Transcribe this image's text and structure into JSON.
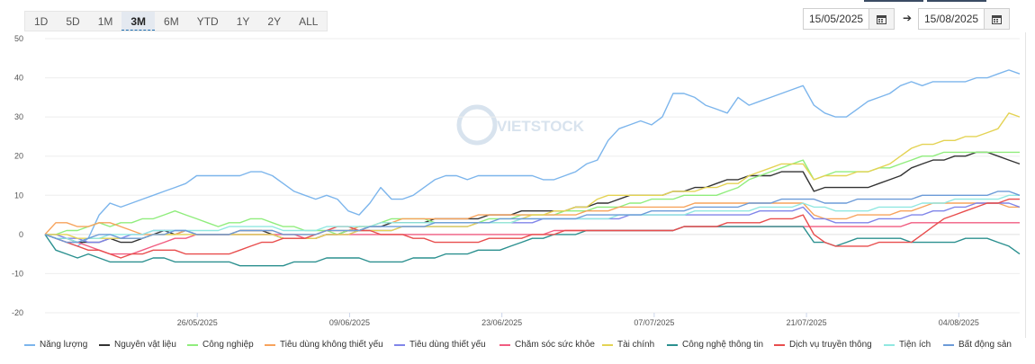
{
  "range_buttons": [
    {
      "label": "1D"
    },
    {
      "label": "5D"
    },
    {
      "label": "1M"
    },
    {
      "label": "3M",
      "active": true
    },
    {
      "label": "6M"
    },
    {
      "label": "YTD"
    },
    {
      "label": "1Y"
    },
    {
      "label": "2Y"
    },
    {
      "label": "ALL"
    }
  ],
  "date_range": {
    "from": "15/05/2025",
    "to": "15/08/2025",
    "arrow": "➔"
  },
  "watermark": "VIETSTOCK",
  "chart_data": {
    "type": "line",
    "ylim": [
      -20,
      50
    ],
    "y_ticks": [
      50,
      40,
      30,
      20,
      10,
      0,
      -10,
      -20
    ],
    "x_range": [
      0,
      64
    ],
    "x_ticks": [
      {
        "x": 10,
        "label": "26/05/2025"
      },
      {
        "x": 20,
        "label": "09/06/2025"
      },
      {
        "x": 30,
        "label": "23/06/2025"
      },
      {
        "x": 40,
        "label": "07/07/2025"
      },
      {
        "x": 50,
        "label": "21/07/2025"
      },
      {
        "x": 60,
        "label": "04/08/2025"
      }
    ],
    "series": [
      {
        "name": "Năng lượng",
        "color": "#7cb5ec",
        "values": [
          0,
          -1,
          -2,
          -3,
          -1,
          5,
          8,
          7,
          8,
          9,
          10,
          11,
          12,
          13,
          15,
          15,
          15,
          15,
          15,
          16,
          16,
          15,
          13,
          11,
          10,
          9,
          10,
          9,
          6,
          5,
          8,
          12,
          9,
          9,
          10,
          12,
          14,
          15,
          15,
          14,
          15,
          15,
          15,
          15,
          15,
          15,
          14,
          14,
          15,
          16,
          18,
          19,
          24,
          27,
          28,
          29,
          28,
          30,
          36,
          36,
          35,
          33,
          32,
          31,
          35,
          33,
          34,
          35,
          36,
          37,
          38,
          33,
          31,
          30,
          30,
          32,
          34,
          35,
          36,
          38,
          39,
          38,
          39,
          39,
          39,
          39,
          40,
          40,
          41,
          42,
          41
        ]
      },
      {
        "name": "Nguyên vật liệu",
        "color": "#333333",
        "values": [
          0,
          -1,
          -1,
          -2,
          -2,
          -2,
          -1,
          -2,
          -2,
          -1,
          0,
          1,
          0,
          1,
          0,
          0,
          0,
          0,
          1,
          1,
          1,
          0,
          -1,
          -1,
          -1,
          -1,
          0,
          0,
          1,
          1,
          2,
          2,
          3,
          3,
          3,
          3,
          4,
          4,
          4,
          4,
          4,
          5,
          5,
          5,
          6,
          6,
          6,
          6,
          6,
          7,
          7,
          8,
          8,
          9,
          10,
          10,
          10,
          10,
          11,
          11,
          12,
          12,
          13,
          14,
          14,
          15,
          15,
          15,
          16,
          16,
          16,
          11,
          12,
          12,
          12,
          12,
          12,
          13,
          14,
          15,
          17,
          18,
          19,
          19,
          20,
          20,
          21,
          21,
          20,
          19,
          18
        ]
      },
      {
        "name": "Công nghiệp",
        "color": "#90ed7d",
        "values": [
          0,
          0,
          1,
          1,
          2,
          3,
          2,
          3,
          3,
          4,
          4,
          5,
          6,
          5,
          4,
          3,
          2,
          3,
          3,
          4,
          4,
          3,
          2,
          2,
          1,
          1,
          1,
          0,
          1,
          2,
          2,
          3,
          4,
          4,
          4,
          4,
          3,
          3,
          3,
          3,
          3,
          4,
          4,
          4,
          5,
          5,
          5,
          5,
          6,
          6,
          6,
          7,
          7,
          7,
          8,
          8,
          9,
          9,
          9,
          10,
          10,
          10,
          10,
          11,
          12,
          14,
          15,
          16,
          17,
          18,
          19,
          14,
          15,
          16,
          16,
          16,
          16,
          17,
          17,
          18,
          19,
          20,
          20,
          21,
          21,
          21,
          21,
          21,
          21,
          21,
          21
        ]
      },
      {
        "name": "Tiêu dùng không thiết yếu",
        "color": "#f7a35c",
        "values": [
          0,
          3,
          3,
          2,
          2,
          3,
          3,
          2,
          1,
          0,
          0,
          0,
          0,
          1,
          0,
          0,
          0,
          0,
          1,
          1,
          1,
          1,
          0,
          0,
          0,
          0,
          1,
          1,
          1,
          2,
          2,
          3,
          3,
          4,
          4,
          4,
          4,
          4,
          4,
          4,
          5,
          5,
          5,
          5,
          5,
          5,
          5,
          5,
          5,
          5,
          6,
          6,
          6,
          7,
          7,
          7,
          7,
          7,
          7,
          7,
          8,
          8,
          8,
          8,
          8,
          8,
          8,
          8,
          8,
          8,
          8,
          5,
          4,
          4,
          4,
          5,
          5,
          5,
          5,
          6,
          6,
          7,
          8,
          8,
          8,
          8,
          8,
          8,
          8,
          7,
          7
        ]
      },
      {
        "name": "Tiêu dùng thiết yếu",
        "color": "#8085e9",
        "values": [
          0,
          0,
          -1,
          -1,
          -2,
          -2,
          -1,
          -1,
          0,
          0,
          1,
          1,
          1,
          1,
          0,
          0,
          0,
          0,
          0,
          0,
          0,
          0,
          -1,
          -1,
          -1,
          -1,
          0,
          0,
          0,
          1,
          1,
          1,
          1,
          2,
          2,
          2,
          2,
          2,
          2,
          2,
          3,
          3,
          3,
          3,
          3,
          3,
          4,
          4,
          4,
          4,
          4,
          4,
          4,
          4,
          5,
          5,
          5,
          5,
          5,
          5,
          5,
          5,
          5,
          5,
          5,
          5,
          6,
          6,
          6,
          6,
          7,
          4,
          4,
          3,
          3,
          3,
          3,
          4,
          4,
          4,
          5,
          5,
          6,
          6,
          7,
          7,
          8,
          8,
          8,
          8,
          7
        ]
      },
      {
        "name": "Chăm sóc sức khỏe",
        "color": "#f15c80",
        "values": [
          0,
          -1,
          -2,
          -2,
          -3,
          -4,
          -5,
          -5,
          -5,
          -4,
          -3,
          -2,
          -1,
          -1,
          0,
          0,
          0,
          0,
          0,
          0,
          0,
          0,
          0,
          0,
          -1,
          -1,
          0,
          0,
          0,
          0,
          0,
          0,
          0,
          0,
          0,
          0,
          0,
          0,
          0,
          0,
          0,
          0,
          0,
          0,
          0,
          0,
          0,
          1,
          1,
          1,
          1,
          1,
          1,
          1,
          1,
          1,
          1,
          1,
          1,
          2,
          2,
          2,
          2,
          2,
          2,
          2,
          2,
          2,
          2,
          2,
          2,
          2,
          2,
          2,
          2,
          2,
          2,
          2,
          2,
          2,
          3,
          3,
          3,
          3,
          3,
          3,
          3,
          3,
          3,
          3,
          3
        ]
      },
      {
        "name": "Tài chính",
        "color": "#e4d354",
        "values": [
          0,
          0,
          0,
          -1,
          -1,
          -1,
          -1,
          -1,
          -1,
          -1,
          0,
          0,
          0,
          0,
          0,
          0,
          0,
          0,
          0,
          0,
          0,
          0,
          -1,
          -1,
          -1,
          -1,
          0,
          0,
          0,
          1,
          1,
          1,
          1,
          2,
          2,
          2,
          2,
          2,
          2,
          2,
          3,
          3,
          3,
          3,
          4,
          5,
          5,
          6,
          6,
          7,
          7,
          9,
          10,
          10,
          10,
          10,
          10,
          10,
          11,
          11,
          11,
          12,
          12,
          13,
          13,
          15,
          16,
          17,
          18,
          18,
          18,
          14,
          15,
          15,
          15,
          16,
          16,
          17,
          18,
          20,
          22,
          23,
          23,
          24,
          24,
          25,
          25,
          26,
          27,
          31,
          30
        ]
      },
      {
        "name": "Công nghệ thông tin",
        "color": "#2b908f",
        "values": [
          0,
          -4,
          -5,
          -6,
          -5,
          -6,
          -7,
          -7,
          -7,
          -7,
          -6,
          -6,
          -7,
          -7,
          -7,
          -7,
          -7,
          -7,
          -8,
          -8,
          -8,
          -8,
          -8,
          -7,
          -7,
          -7,
          -6,
          -6,
          -6,
          -6,
          -7,
          -7,
          -7,
          -7,
          -6,
          -6,
          -6,
          -5,
          -5,
          -5,
          -4,
          -4,
          -4,
          -3,
          -2,
          -1,
          -1,
          0,
          0,
          0,
          1,
          1,
          1,
          1,
          1,
          1,
          1,
          1,
          1,
          2,
          2,
          2,
          2,
          2,
          2,
          2,
          2,
          2,
          2,
          2,
          2,
          -2,
          -2,
          -3,
          -2,
          -1,
          -1,
          -1,
          -1,
          -1,
          -2,
          -2,
          -2,
          -2,
          -2,
          -1,
          -1,
          -1,
          -2,
          -3,
          -5
        ]
      },
      {
        "name": "Dịch vụ truyền thông",
        "color": "#e84d4d",
        "values": [
          0,
          -1,
          -2,
          -3,
          -4,
          -4,
          -5,
          -6,
          -5,
          -5,
          -4,
          -4,
          -4,
          -5,
          -5,
          -5,
          -5,
          -5,
          -4,
          -3,
          -2,
          -2,
          -1,
          -1,
          -1,
          0,
          1,
          2,
          2,
          1,
          1,
          0,
          0,
          0,
          -1,
          -1,
          -2,
          -2,
          -2,
          -2,
          -2,
          -1,
          -1,
          -1,
          -1,
          0,
          0,
          0,
          1,
          1,
          1,
          1,
          1,
          1,
          1,
          1,
          1,
          1,
          1,
          2,
          2,
          2,
          2,
          3,
          3,
          3,
          3,
          4,
          4,
          4,
          5,
          0,
          -2,
          -3,
          -3,
          -3,
          -3,
          -2,
          -2,
          -2,
          -2,
          0,
          2,
          4,
          5,
          6,
          7,
          8,
          8,
          9,
          9
        ]
      },
      {
        "name": "Tiện ích",
        "color": "#91e8e1",
        "values": [
          0,
          -1,
          -1,
          -2,
          -1,
          -1,
          0,
          0,
          0,
          0,
          1,
          1,
          1,
          1,
          1,
          1,
          1,
          2,
          2,
          2,
          2,
          2,
          1,
          1,
          1,
          1,
          2,
          2,
          2,
          2,
          2,
          3,
          3,
          3,
          3,
          3,
          3,
          3,
          3,
          3,
          3,
          3,
          3,
          3,
          4,
          4,
          4,
          4,
          4,
          4,
          4,
          4,
          4,
          5,
          5,
          5,
          5,
          5,
          5,
          5,
          6,
          6,
          6,
          6,
          6,
          6,
          7,
          7,
          7,
          7,
          8,
          7,
          7,
          6,
          6,
          6,
          6,
          7,
          7,
          7,
          7,
          8,
          8,
          8,
          9,
          9,
          9,
          9,
          9,
          10,
          10
        ]
      },
      {
        "name": "Bất động sản",
        "color": "#6c9bd8",
        "values": [
          0,
          -1,
          -2,
          -2,
          -1,
          0,
          0,
          -1,
          -1,
          -1,
          0,
          0,
          1,
          1,
          0,
          0,
          0,
          0,
          1,
          1,
          1,
          1,
          0,
          0,
          0,
          0,
          1,
          1,
          1,
          1,
          2,
          2,
          2,
          2,
          2,
          2,
          3,
          3,
          3,
          3,
          3,
          3,
          4,
          4,
          4,
          4,
          4,
          4,
          4,
          4,
          5,
          5,
          5,
          5,
          5,
          5,
          6,
          6,
          6,
          6,
          7,
          7,
          7,
          7,
          7,
          8,
          8,
          8,
          9,
          9,
          9,
          9,
          8,
          8,
          8,
          9,
          9,
          9,
          9,
          9,
          9,
          10,
          10,
          10,
          10,
          10,
          10,
          10,
          11,
          11,
          10
        ]
      }
    ]
  }
}
